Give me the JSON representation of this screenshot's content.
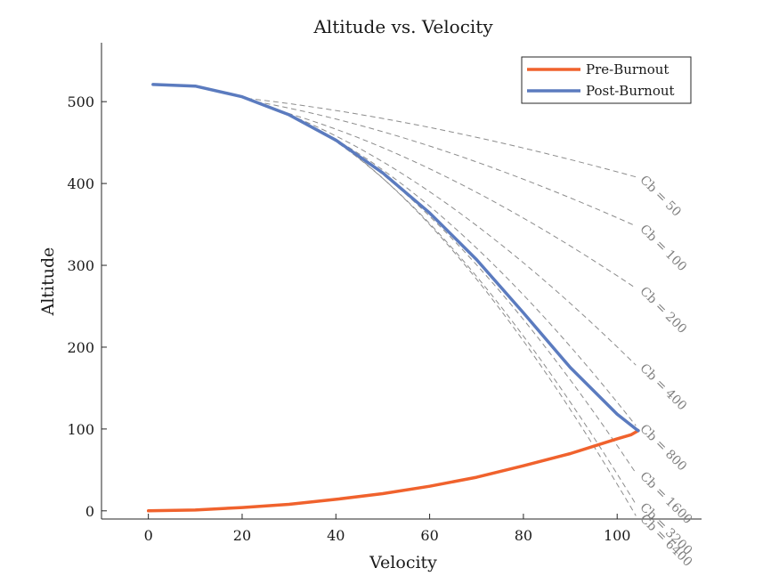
{
  "chart_data": {
    "type": "line",
    "title": "Altitude vs. Velocity",
    "xlabel": "Velocity",
    "ylabel": "Altitude",
    "xlim": [
      -10,
      118
    ],
    "ylim": [
      -10,
      572
    ],
    "xticks": [
      0,
      20,
      40,
      60,
      80,
      100
    ],
    "yticks": [
      0,
      100,
      200,
      300,
      400,
      500
    ],
    "grid": false,
    "legend_position": "top-right",
    "series": [
      {
        "name": "Pre-Burnout",
        "color": "#f0622d",
        "points": [
          [
            0,
            0
          ],
          [
            10,
            1
          ],
          [
            20,
            4
          ],
          [
            30,
            8
          ],
          [
            40,
            14
          ],
          [
            50,
            21
          ],
          [
            60,
            30
          ],
          [
            70,
            41
          ],
          [
            80,
            55
          ],
          [
            90,
            70
          ],
          [
            100,
            88
          ],
          [
            103,
            93
          ],
          [
            104.5,
            98
          ]
        ]
      },
      {
        "name": "Post-Burnout",
        "color": "#5b7bbf",
        "points": [
          [
            1,
            521
          ],
          [
            10,
            519
          ],
          [
            20,
            506
          ],
          [
            30,
            484
          ],
          [
            40,
            453
          ],
          [
            50,
            413
          ],
          [
            60,
            364
          ],
          [
            70,
            307
          ],
          [
            80,
            242
          ],
          [
            90,
            175
          ],
          [
            100,
            118
          ],
          [
            104,
            100
          ],
          [
            104.5,
            98
          ]
        ]
      }
    ],
    "annotations": [
      {
        "label": "Cb = 50",
        "x0": 21,
        "y0": 504,
        "x1": 104,
        "y1": 408
      },
      {
        "label": "Cb = 100",
        "x0": 23,
        "y0": 500,
        "x1": 104,
        "y1": 348
      },
      {
        "label": "Cb = 200",
        "x0": 26,
        "y0": 492,
        "x1": 104,
        "y1": 272
      },
      {
        "label": "Cb = 400",
        "x0": 30,
        "y0": 484,
        "x1": 104,
        "y1": 178
      },
      {
        "label": "Cb = 800",
        "x0": 36,
        "y0": 466,
        "x1": 104,
        "y1": 104
      },
      {
        "label": "Cb = 1600",
        "x0": 38,
        "y0": 460,
        "x1": 104,
        "y1": 46
      },
      {
        "label": "Cb = 3200",
        "x0": 39,
        "y0": 455,
        "x1": 104,
        "y1": 8
      },
      {
        "label": "Cb = 6400",
        "x0": 40,
        "y0": 452,
        "x1": 104,
        "y1": -6
      }
    ],
    "reference_line_color": "#8c8c8c"
  }
}
